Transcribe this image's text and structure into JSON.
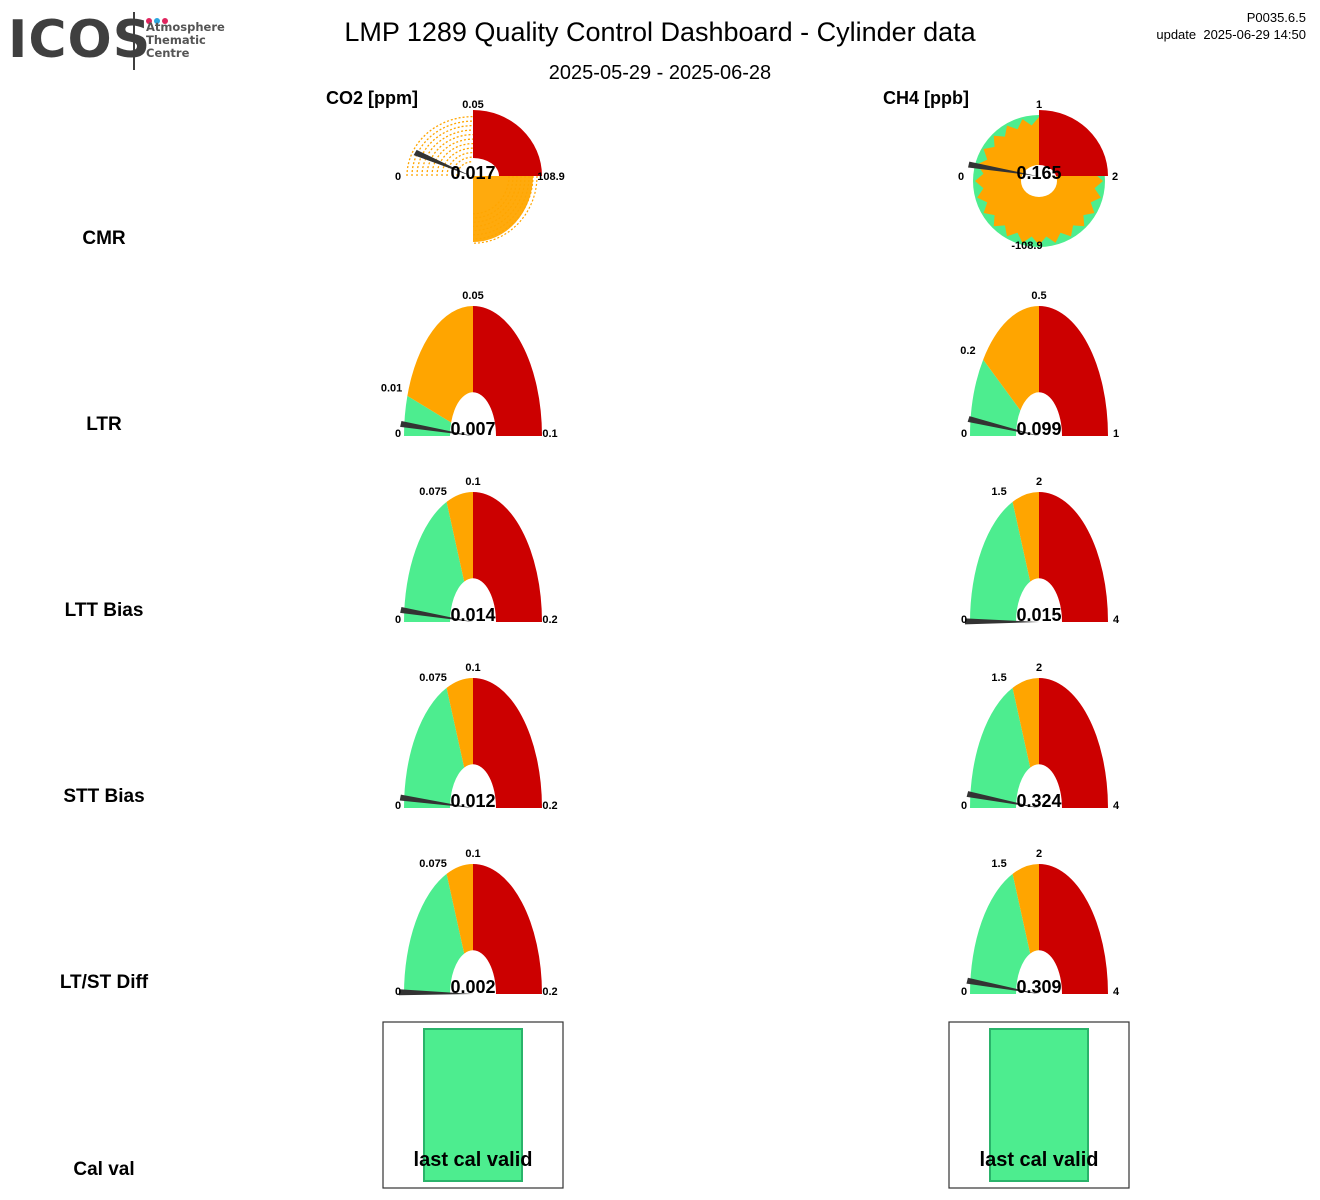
{
  "header": {
    "title": "LMP 1289 Quality Control Dashboard - Cylinder data",
    "subtitle": "2025-05-29 - 2025-06-28",
    "version": "P0035.6.5",
    "update": "update  2025-06-29 14:50"
  },
  "logo": {
    "text": "ICOS",
    "subtitle": "Atmosphere\nThematic\nCentre",
    "dot_colors": [
      "#e0245e",
      "#2aa6df",
      "#e0245e"
    ]
  },
  "columns": [
    "CO2 [ppm]",
    "CH4 [ppb]"
  ],
  "rows": [
    "CMR",
    "LTR",
    "LTT Bias",
    "STT Bias",
    "LT/ST Diff",
    "Cal val"
  ],
  "colors": {
    "green": "#4ded8f",
    "orange": "#ffa500",
    "red": "#cc0000",
    "needle": "#333333"
  },
  "chart_data": [
    {
      "type": "gauge",
      "row": "CMR",
      "column": "CO2 [ppm]",
      "value": 0.017,
      "value_label": "0.017",
      "range": [
        0,
        0.1
      ],
      "ticks": [
        "0",
        "0.05",
        "108.9"
      ],
      "thresholds": [
        -108.9,
        0.05
      ],
      "state": "distorted"
    },
    {
      "type": "gauge",
      "row": "CMR",
      "column": "CH4 [ppb]",
      "value": 0.165,
      "value_label": "0.165",
      "range": [
        0,
        2
      ],
      "ticks": [
        "0",
        "1",
        "2",
        "-108.9"
      ],
      "thresholds": [
        -108.9,
        1
      ],
      "state": "distorted"
    },
    {
      "type": "gauge",
      "row": "LTR",
      "column": "CO2 [ppm]",
      "value": 0.007,
      "value_label": "0.007",
      "range": [
        0,
        0.1
      ],
      "ticks": [
        "0",
        "0.01",
        "0.05",
        "0.1"
      ],
      "thresholds": [
        0.01,
        0.05
      ]
    },
    {
      "type": "gauge",
      "row": "LTR",
      "column": "CH4 [ppb]",
      "value": 0.099,
      "value_label": "0.099",
      "range": [
        0,
        1
      ],
      "ticks": [
        "0",
        "0.2",
        "0.5",
        "1"
      ],
      "thresholds": [
        0.2,
        0.5
      ]
    },
    {
      "type": "gauge",
      "row": "LTT Bias",
      "column": "CO2 [ppm]",
      "value": 0.014,
      "value_label": "0.014",
      "range": [
        0,
        0.2
      ],
      "ticks": [
        "0",
        "0.075",
        "0.1",
        "0.2"
      ],
      "thresholds": [
        0.075,
        0.1
      ]
    },
    {
      "type": "gauge",
      "row": "LTT Bias",
      "column": "CH4 [ppb]",
      "value": 0.015,
      "value_label": "0.015",
      "range": [
        0,
        4
      ],
      "ticks": [
        "0",
        "1.5",
        "2",
        "4"
      ],
      "thresholds": [
        1.5,
        2
      ]
    },
    {
      "type": "gauge",
      "row": "STT Bias",
      "column": "CO2 [ppm]",
      "value": 0.012,
      "value_label": "0.012",
      "range": [
        0,
        0.2
      ],
      "ticks": [
        "0",
        "0.075",
        "0.1",
        "0.2"
      ],
      "thresholds": [
        0.075,
        0.1
      ]
    },
    {
      "type": "gauge",
      "row": "STT Bias",
      "column": "CH4 [ppb]",
      "value": 0.324,
      "value_label": "0.324",
      "range": [
        0,
        4
      ],
      "ticks": [
        "0",
        "1.5",
        "2",
        "4"
      ],
      "thresholds": [
        1.5,
        2
      ]
    },
    {
      "type": "gauge",
      "row": "LT/ST Diff",
      "column": "CO2 [ppm]",
      "value": 0.002,
      "value_label": "0.002",
      "range": [
        0,
        0.2
      ],
      "ticks": [
        "0",
        "0.075",
        "0.1",
        "0.2"
      ],
      "thresholds": [
        0.075,
        0.1
      ]
    },
    {
      "type": "gauge",
      "row": "LT/ST Diff",
      "column": "CH4 [ppb]",
      "value": 0.309,
      "value_label": "0.309",
      "range": [
        0,
        4
      ],
      "ticks": [
        "0",
        "1.5",
        "2",
        "4"
      ],
      "thresholds": [
        1.5,
        2
      ]
    },
    {
      "type": "status",
      "row": "Cal val",
      "column": "CO2 [ppm]",
      "label": "last cal valid",
      "color": "#4ded8f"
    },
    {
      "type": "status",
      "row": "Cal val",
      "column": "CH4 [ppb]",
      "label": "last cal valid",
      "color": "#4ded8f"
    }
  ]
}
